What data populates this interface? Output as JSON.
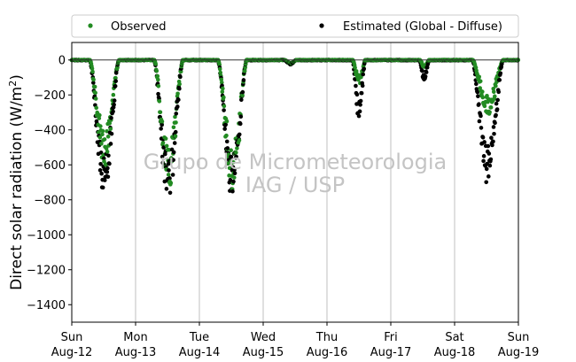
{
  "chart_data": {
    "type": "scatter",
    "ylabel": "Direct solar radiation (W/m²)",
    "ylabel_main": "Direct solar radiation (W/m",
    "ylabel_sup": "2",
    "ylabel_close": ")",
    "ylim": [
      -1500,
      100
    ],
    "yticks": [
      0,
      -200,
      -400,
      -600,
      -800,
      -1000,
      -1200,
      -1400
    ],
    "xlim": [
      0,
      7
    ],
    "xticks": [
      {
        "x": 0,
        "day": "Sun",
        "date": "Aug-12"
      },
      {
        "x": 1,
        "day": "Mon",
        "date": "Aug-13"
      },
      {
        "x": 2,
        "day": "Tue",
        "date": "Aug-14"
      },
      {
        "x": 3,
        "day": "Wed",
        "date": "Aug-15"
      },
      {
        "x": 4,
        "day": "Thu",
        "date": "Aug-16"
      },
      {
        "x": 5,
        "day": "Fri",
        "date": "Aug-17"
      },
      {
        "x": 6,
        "day": "Sat",
        "date": "Aug-18"
      },
      {
        "x": 7,
        "day": "Sun",
        "date": "Aug-19"
      }
    ],
    "grid": "vertical",
    "legend_placement": "top, outside plot",
    "watermark": [
      "Grupo de Micrometeorologia",
      "IAG / USP"
    ],
    "series": [
      {
        "name": "Observed",
        "color": "#228b22",
        "marker": "dot"
      },
      {
        "name": "Estimated (Global - Diffuse)",
        "color": "#000000",
        "marker": "dot"
      }
    ],
    "days": [
      {
        "day": 0,
        "start": 0.28,
        "end": 0.74,
        "observed_min": -560,
        "estimated_min": -715
      },
      {
        "day": 1,
        "start": 0.29,
        "end": 0.74,
        "observed_min": -680,
        "estimated_min": -740
      },
      {
        "day": 2,
        "start": 0.29,
        "end": 0.74,
        "observed_min": -690,
        "estimated_min": -735
      },
      {
        "day": 3,
        "start": 0.33,
        "end": 0.52,
        "observed_min": -20,
        "estimated_min": -25
      },
      {
        "day": 4,
        "start": 0.4,
        "end": 0.6,
        "observed_min": -130,
        "estimated_min": -305
      },
      {
        "day": 5,
        "start": 0.45,
        "end": 0.6,
        "observed_min": -40,
        "estimated_min": -110
      },
      {
        "day": 6,
        "start": 0.28,
        "end": 0.76,
        "observed_min": -290,
        "estimated_min": -650
      }
    ]
  }
}
